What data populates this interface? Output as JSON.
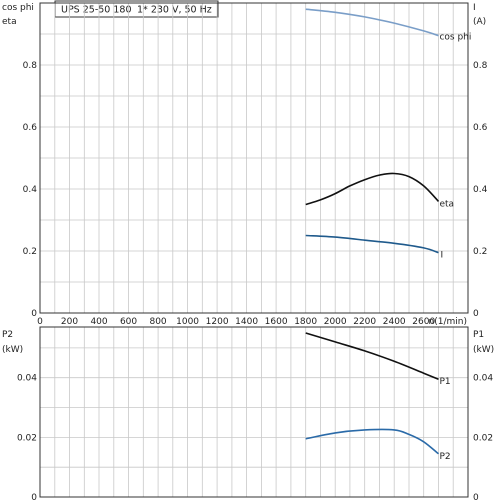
{
  "header": {
    "model": "UPS 25-50 180",
    "supply": "1* 230 V, 50 Hz"
  },
  "colors": {
    "grid": "#c8c8c8",
    "frame": "#333333",
    "cos_phi": "#7a9ec8",
    "eta": "#111111",
    "current": "#1f5a8c",
    "p1": "#111111",
    "p2": "#2a6aa8"
  },
  "chart_data": [
    {
      "type": "line",
      "title": "",
      "y_label_left": [
        "cos phi",
        "eta"
      ],
      "y_label_right": [
        "I",
        "(A)"
      ],
      "xlabel": "n(1/min)",
      "xlim": [
        0,
        2900
      ],
      "ylim": [
        0,
        1
      ],
      "x_ticks": [
        "0",
        "200",
        "400",
        "600",
        "800",
        "1000",
        "1200",
        "1400",
        "1600",
        "1800",
        "2000",
        "2200",
        "2400",
        "2600"
      ],
      "y_ticks": [
        "0",
        "0.2",
        "0.4",
        "0.6",
        "0.8"
      ],
      "grid": true,
      "series": [
        {
          "name": "cos phi",
          "color_key": "cos_phi",
          "x": [
            1800,
            2000,
            2200,
            2400,
            2600,
            2700
          ],
          "y": [
            0.98,
            0.97,
            0.955,
            0.935,
            0.91,
            0.895
          ]
        },
        {
          "name": "eta",
          "color_key": "eta",
          "x": [
            1800,
            1900,
            2000,
            2100,
            2200,
            2300,
            2400,
            2500,
            2600,
            2700
          ],
          "y": [
            0.35,
            0.365,
            0.385,
            0.41,
            0.43,
            0.445,
            0.45,
            0.44,
            0.41,
            0.36
          ]
        },
        {
          "name": "I",
          "color_key": "current",
          "x": [
            1800,
            2000,
            2200,
            2400,
            2600,
            2700
          ],
          "y": [
            0.25,
            0.245,
            0.235,
            0.225,
            0.21,
            0.195
          ]
        }
      ]
    },
    {
      "type": "line",
      "title": "",
      "y_label_left": [
        "P2",
        "(kW)"
      ],
      "y_label_right": [
        "P1",
        "(kW)"
      ],
      "xlim": [
        0,
        2900
      ],
      "ylim": [
        0,
        0.057
      ],
      "y_ticks": [
        "0",
        "0.02",
        "0.04"
      ],
      "grid": true,
      "series": [
        {
          "name": "P1",
          "color_key": "p1",
          "x": [
            1800,
            2000,
            2200,
            2400,
            2600,
            2700
          ],
          "y": [
            0.055,
            0.052,
            0.049,
            0.0455,
            0.0415,
            0.0395
          ]
        },
        {
          "name": "P2",
          "color_key": "p2",
          "x": [
            1800,
            2000,
            2200,
            2400,
            2500,
            2600,
            2700
          ],
          "y": [
            0.0195,
            0.0215,
            0.0225,
            0.0225,
            0.021,
            0.0185,
            0.0145
          ]
        }
      ]
    }
  ]
}
